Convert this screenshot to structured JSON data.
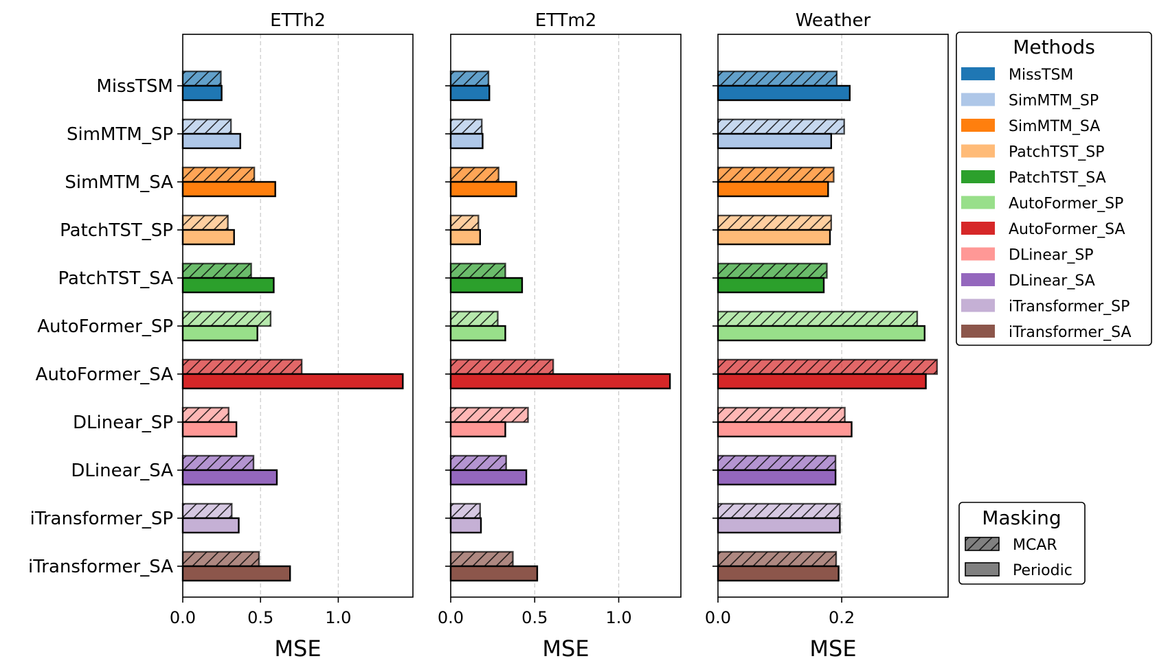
{
  "chart_data": {
    "type": "bar",
    "orientation": "horizontal",
    "categories": [
      "MissTSM",
      "SimMTM_SP",
      "SimMTM_SA",
      "PatchTST_SP",
      "PatchTST_SA",
      "AutoFormer_SP",
      "AutoFormer_SA",
      "DLinear_SP",
      "DLinear_SA",
      "iTransformer_SP",
      "iTransformer_SA"
    ],
    "colors": [
      "#1f77b4",
      "#aec7e8",
      "#ff7f0e",
      "#ffbb78",
      "#2ca02c",
      "#98df8a",
      "#d62728",
      "#ff9896",
      "#9467bd",
      "#c5b0d5",
      "#8c564b"
    ],
    "xlabel": "MSE",
    "panels": [
      {
        "title": "ETTh2",
        "xlim": [
          0,
          1.48
        ],
        "xticks": [
          0.0,
          0.5,
          1.0
        ],
        "xtick_labels": [
          "0.0",
          "0.5",
          "1.0"
        ],
        "series": [
          {
            "name": "MCAR",
            "values": [
              0.245,
              0.31,
              0.46,
              0.29,
              0.44,
              0.565,
              0.765,
              0.295,
              0.455,
              0.315,
              0.49
            ]
          },
          {
            "name": "Periodic",
            "values": [
              0.25,
              0.37,
              0.595,
              0.33,
              0.585,
              0.48,
              1.415,
              0.345,
              0.605,
              0.36,
              0.69
            ]
          }
        ]
      },
      {
        "title": "ETTm2",
        "xlim": [
          0,
          1.37
        ],
        "xticks": [
          0.0,
          0.5,
          1.0
        ],
        "xtick_labels": [
          "0.0",
          "0.5",
          "1.0"
        ],
        "series": [
          {
            "name": "MCAR",
            "values": [
              0.225,
              0.185,
              0.285,
              0.165,
              0.325,
              0.28,
              0.61,
              0.46,
              0.33,
              0.175,
              0.37
            ]
          },
          {
            "name": "Periodic",
            "values": [
              0.23,
              0.19,
              0.39,
              0.175,
              0.425,
              0.325,
              1.305,
              0.325,
              0.45,
              0.18,
              0.515
            ]
          }
        ]
      },
      {
        "title": "Weather",
        "xlim": [
          0,
          0.372
        ],
        "xticks": [
          0.0,
          0.2
        ],
        "xtick_labels": [
          "0.0",
          "0.2"
        ],
        "series": [
          {
            "name": "MCAR",
            "values": [
              0.192,
              0.204,
              0.187,
              0.183,
              0.176,
              0.322,
              0.354,
              0.205,
              0.19,
              0.197,
              0.191
            ]
          },
          {
            "name": "Periodic",
            "values": [
              0.213,
              0.183,
              0.178,
              0.181,
              0.171,
              0.334,
              0.336,
              0.216,
              0.19,
              0.197,
              0.195
            ]
          }
        ]
      }
    ],
    "legend_methods": {
      "title": "Methods",
      "location": "top-right",
      "entries": [
        "MissTSM",
        "SimMTM_SP",
        "SimMTM_SA",
        "PatchTST_SP",
        "PatchTST_SA",
        "AutoFormer_SP",
        "AutoFormer_SA",
        "DLinear_SP",
        "DLinear_SA",
        "iTransformer_SP",
        "iTransformer_SA"
      ]
    },
    "legend_masking": {
      "title": "Masking",
      "location": "bottom-right",
      "entries": [
        {
          "label": "MCAR",
          "hatch": true
        },
        {
          "label": "Periodic",
          "hatch": false
        }
      ]
    },
    "grid": "x-dashed"
  }
}
